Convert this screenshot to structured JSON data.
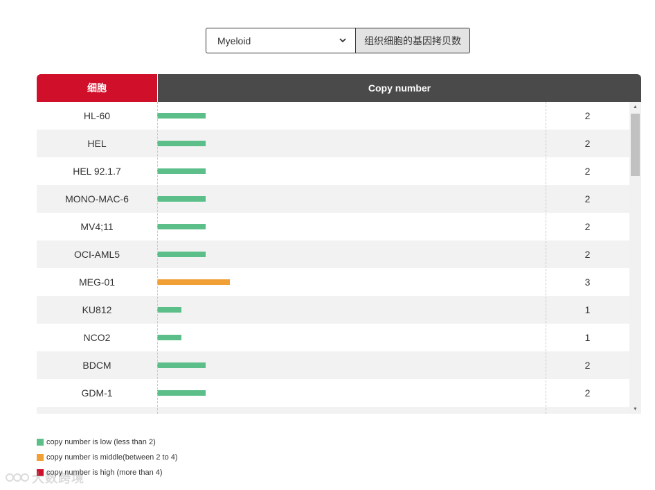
{
  "selector": {
    "value": "Myeloid",
    "button_label": "组织细胞的基因拷贝数"
  },
  "chart_data": {
    "type": "bar",
    "orientation": "horizontal",
    "columns": [
      "细胞",
      "Copy number"
    ],
    "categories": [
      "HL-60",
      "HEL",
      "HEL 92.1.7",
      "MONO-MAC-6",
      "MV4;11",
      "OCI-AML5",
      "MEG-01",
      "KU812",
      "NCO2",
      "BDCM",
      "GDM-1"
    ],
    "values": [
      2,
      2,
      2,
      2,
      2,
      2,
      3,
      1,
      1,
      2,
      2
    ],
    "value_labels": [
      "2",
      "2",
      "2",
      "2",
      "2",
      "2",
      "3",
      "1",
      "1",
      "2",
      "2"
    ],
    "xlim": [
      0,
      8
    ],
    "thresholds": {
      "low": 2,
      "high": 4
    },
    "colors": {
      "low": "#5cbf8a",
      "middle": "#f0a035",
      "high": "#d0102a"
    },
    "legend": [
      {
        "key": "low",
        "label": "copy number is low (less than 2)"
      },
      {
        "key": "middle",
        "label": "copy number is middle(between 2 to 4)"
      },
      {
        "key": "high",
        "label": "copy number is high (more than 4)"
      }
    ],
    "legend_position": "bottom-left"
  },
  "watermark": {
    "text": "大数跨境"
  },
  "colors": {
    "header_cell": "#d0102a",
    "header_copy": "#4a4a4a",
    "row_alt": "#f2f2f2"
  }
}
